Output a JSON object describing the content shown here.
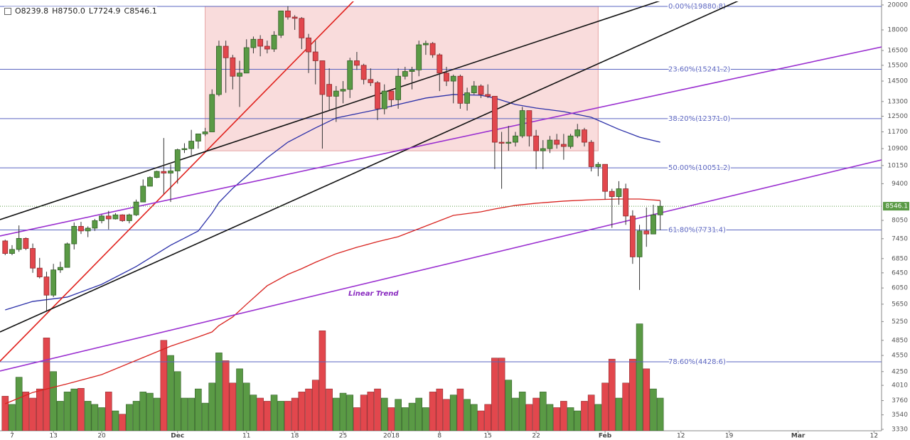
{
  "chart_data": {
    "type": "candlestick",
    "ohlc_readout": [
      "O8239.8",
      "H8750.0",
      "L7724.9",
      "C8546.1"
    ],
    "annotation": "Linear Trend",
    "up_color": "#5a9a45",
    "down_color": "#e2474d",
    "log_scale": true,
    "xlim": [
      -1.75,
      126.1
    ],
    "ylim": [
      3310,
      20300
    ],
    "xticks": [
      {
        "value": 0,
        "label": "7"
      },
      {
        "value": 6,
        "label": "13"
      },
      {
        "value": 13,
        "label": "20"
      },
      {
        "value": 24,
        "label": "Dec"
      },
      {
        "value": 34,
        "label": "11"
      },
      {
        "value": 41,
        "label": "18"
      },
      {
        "value": 48,
        "label": "25"
      },
      {
        "value": 55,
        "label": "2018"
      },
      {
        "value": 62,
        "label": "8"
      },
      {
        "value": 69,
        "label": "15"
      },
      {
        "value": 76,
        "label": "22"
      },
      {
        "value": 86,
        "label": "Feb"
      },
      {
        "value": 97,
        "label": "12"
      },
      {
        "value": 104,
        "label": "19"
      },
      {
        "value": 114,
        "label": "Mar"
      },
      {
        "value": 125,
        "label": "12"
      }
    ],
    "yticks": [
      20000,
      18000,
      16500,
      15500,
      14500,
      13300,
      12500,
      11700,
      10900,
      10150,
      9400,
      8050,
      7450,
      6850,
      6450,
      6050,
      5650,
      5250,
      4850,
      4550,
      4250,
      4010,
      3760,
      3540,
      3330
    ],
    "x": [
      -1,
      0,
      1,
      2,
      3,
      4,
      5,
      6,
      7,
      8,
      9,
      10,
      11,
      12,
      13,
      14,
      15,
      16,
      17,
      18,
      19,
      20,
      21,
      22,
      23,
      24,
      25,
      26,
      27,
      28,
      29,
      30,
      31,
      32,
      33,
      34,
      35,
      36,
      37,
      38,
      39,
      40,
      41,
      42,
      43,
      44,
      45,
      46,
      47,
      48,
      49,
      50,
      51,
      52,
      53,
      54,
      55,
      56,
      57,
      58,
      59,
      60,
      61,
      62,
      63,
      64,
      65,
      66,
      67,
      68,
      69,
      70,
      71,
      72,
      73,
      74,
      75,
      76,
      77,
      78,
      79,
      80,
      81,
      82,
      83,
      84,
      85,
      86,
      87,
      88,
      89,
      90,
      91,
      92,
      93,
      94
    ],
    "open": [
      7380,
      7000,
      7120,
      7460,
      7150,
      6580,
      6340,
      5870,
      6530,
      6600,
      7290,
      7850,
      7700,
      7790,
      8040,
      8200,
      8100,
      8240,
      8040,
      8240,
      8700,
      9300,
      9650,
      9900,
      9830,
      9920,
      10850,
      10900,
      11250,
      11600,
      11700,
      13700,
      16800,
      16000,
      14800,
      15000,
      16700,
      17300,
      16800,
      16600,
      17600,
      19500,
      19000,
      18900,
      17400,
      16400,
      15800,
      14300,
      13600,
      13900,
      14000,
      15800,
      15500,
      14600,
      14400,
      12900,
      13900,
      13400,
      14800,
      15100,
      15200,
      16900,
      17000,
      16200,
      15000,
      14500,
      14800,
      13200,
      13800,
      14200,
      13700,
      13600,
      11200,
      11150,
      11200,
      11500,
      12800,
      11500,
      10800,
      10900,
      11300,
      11100,
      11000,
      11500,
      11800,
      11200,
      10100,
      10200,
      9100,
      8900,
      9200,
      8200,
      6900,
      7700,
      7600,
      8239.8
    ],
    "high": [
      7420,
      7250,
      7880,
      7490,
      7300,
      6870,
      6480,
      6700,
      6760,
      7330,
      7980,
      8000,
      7850,
      8100,
      8250,
      8380,
      8300,
      8260,
      8280,
      8790,
      9570,
      9700,
      9930,
      11400,
      10200,
      10900,
      11150,
      11800,
      11600,
      11900,
      14000,
      17200,
      17200,
      16200,
      15800,
      17300,
      17500,
      17600,
      17200,
      17900,
      19500,
      19900,
      19150,
      19000,
      17700,
      17200,
      15800,
      15300,
      14200,
      14500,
      16000,
      16400,
      15600,
      15300,
      14500,
      14300,
      13900,
      15300,
      15400,
      15400,
      17200,
      17200,
      17100,
      16300,
      15400,
      14900,
      14900,
      14100,
      14500,
      14300,
      14300,
      13600,
      11700,
      12000,
      11700,
      13000,
      12800,
      11800,
      11300,
      11500,
      11600,
      11600,
      11600,
      12100,
      11900,
      11300,
      10300,
      10200,
      9200,
      9500,
      9400,
      8400,
      7900,
      8500,
      8600,
      8750.0
    ],
    "low": [
      6950,
      6950,
      7050,
      7100,
      6450,
      6300,
      5500,
      5820,
      6450,
      6600,
      7120,
      7600,
      7500,
      7700,
      7950,
      7750,
      8080,
      8000,
      7950,
      8200,
      8700,
      9300,
      9620,
      9000,
      8700,
      9400,
      10700,
      10600,
      10900,
      11500,
      11700,
      13600,
      13800,
      14000,
      13000,
      15000,
      16300,
      16100,
      16300,
      16400,
      17400,
      18800,
      18000,
      16600,
      15000,
      14300,
      10900,
      12800,
      12200,
      13200,
      13500,
      15200,
      14300,
      14200,
      12300,
      12600,
      13000,
      12900,
      14600,
      14000,
      14800,
      16200,
      16000,
      13900,
      14200,
      13200,
      12900,
      12800,
      13700,
      13500,
      13500,
      10000,
      9200,
      10800,
      11000,
      11400,
      11000,
      10000,
      10000,
      10700,
      10900,
      10400,
      10900,
      11400,
      11000,
      9900,
      9700,
      8800,
      7800,
      8600,
      7900,
      6700,
      6000,
      7200,
      7600,
      7724.9
    ],
    "close": [
      7000,
      7120,
      7460,
      7150,
      6580,
      6340,
      5870,
      6530,
      6600,
      7290,
      7850,
      7700,
      7790,
      8040,
      8200,
      8100,
      8240,
      8040,
      8240,
      8700,
      9300,
      9650,
      9900,
      9830,
      9920,
      10850,
      10900,
      11250,
      11600,
      11700,
      13700,
      16800,
      16000,
      14800,
      15000,
      16700,
      17300,
      16800,
      16600,
      17600,
      19500,
      19000,
      18900,
      17400,
      16400,
      15800,
      13700,
      13600,
      13900,
      14000,
      15800,
      15500,
      14600,
      14400,
      12900,
      13900,
      13400,
      14800,
      15100,
      15200,
      16900,
      17000,
      16200,
      15000,
      14500,
      14800,
      13200,
      13800,
      14200,
      13700,
      13600,
      11200,
      11150,
      11200,
      11500,
      12800,
      11500,
      10800,
      10900,
      11300,
      11100,
      11000,
      11500,
      11800,
      11200,
      10100,
      10200,
      9100,
      8900,
      9200,
      8200,
      6900,
      7700,
      7600,
      8239.8,
      8546.1
    ],
    "volume": [
      3830,
      3700,
      4150,
      3900,
      3800,
      3950,
      4900,
      4250,
      3750,
      3900,
      3950,
      3960,
      3750,
      3700,
      3650,
      3900,
      3600,
      3550,
      3700,
      3750,
      3900,
      3880,
      3800,
      4850,
      4550,
      4250,
      3800,
      3800,
      3950,
      3720,
      4050,
      4600,
      4450,
      4050,
      4300,
      4050,
      3850,
      3800,
      3750,
      3850,
      3750,
      3750,
      3800,
      3900,
      3950,
      4100,
      5050,
      3950,
      3800,
      3880,
      3850,
      3650,
      3850,
      3900,
      3950,
      3800,
      3650,
      3780,
      3650,
      3720,
      3800,
      3650,
      3900,
      3950,
      3780,
      3850,
      3950,
      3780,
      3700,
      3600,
      3700,
      4500,
      4500,
      4100,
      3800,
      3900,
      3700,
      3800,
      3900,
      3700,
      3650,
      3750,
      3650,
      3600,
      3750,
      3850,
      3700,
      4050,
      4480,
      3800,
      4050,
      4480,
      5200,
      4300,
      3950,
      3800
    ],
    "moving_averages": [
      {
        "color": "#2a2fa8",
        "x": [
          -1,
          3,
          8,
          13,
          18,
          23,
          27,
          29,
          30,
          32,
          34,
          37,
          40,
          42,
          44,
          47,
          50,
          53,
          56,
          60,
          64,
          68,
          70,
          73,
          76,
          80,
          84,
          88,
          91,
          94
        ],
        "values": [
          5514,
          5716,
          5822,
          6144,
          6624,
          7248,
          7696,
          8298,
          8680,
          9216,
          9698,
          10486,
          11202,
          11546,
          11896,
          12408,
          12632,
          12862,
          13136,
          13496,
          13700,
          13658,
          13496,
          13136,
          12940,
          12746,
          12444,
          11826,
          11440,
          11202
        ]
      },
      {
        "color": "#d8231f",
        "x": [
          -1,
          3,
          8,
          13,
          18,
          23,
          27,
          29,
          30,
          32,
          34,
          37,
          40,
          42,
          44,
          47,
          50,
          53,
          56,
          60,
          64,
          68,
          70,
          73,
          76,
          80,
          84,
          88,
          91,
          94
        ],
        "values": [
          3710,
          3892,
          4036,
          4196,
          4456,
          4732,
          4920,
          5024,
          5162,
          5352,
          5648,
          6108,
          6408,
          6564,
          6744,
          6992,
          7184,
          7358,
          7514,
          7860,
          8222,
          8346,
          8448,
          8576,
          8654,
          8732,
          8784,
          8810,
          8810,
          8758
        ]
      }
    ],
    "trend_lines": [
      {
        "color": "#e0201c",
        "x": [
          -1.75,
          39.5
        ],
        "y": [
          4440,
          15100
        ]
      },
      {
        "color": "#111111",
        "x": [
          -1.75,
          70.4
        ],
        "y": [
          8076,
          16210
        ]
      },
      {
        "color": "#111111",
        "x": [
          -1.75,
          80.8
        ],
        "y": [
          5024,
          14770
        ]
      },
      {
        "color": "#9a2fd0",
        "x": [
          -1.75,
          109.8
        ],
        "y": [
          7537,
          15127
        ]
      },
      {
        "color": "#9a2fd0",
        "x": [
          -1.75,
          126.1
        ],
        "y": [
          4260,
          10392
        ]
      }
    ],
    "fib_color": "#5a64c0",
    "fib_levels": [
      {
        "value": 19880.8,
        "label": "0.00%(19880.8)"
      },
      {
        "value": 15241.2,
        "label": "23.60%(15241.2)"
      },
      {
        "value": 12371.0,
        "label": "38.20%(12371.0)"
      },
      {
        "value": 10051.2,
        "label": "50.00%(10051.2)"
      },
      {
        "value": 7731.4,
        "label": "61.80%(7731.4)"
      },
      {
        "value": 4428.6,
        "label": "78.60%(4428.6)"
      }
    ],
    "fib_box": {
      "x": [
        28,
        85
      ],
      "y": [
        10800,
        19880.8
      ],
      "color": "#f9dcdc"
    }
  }
}
